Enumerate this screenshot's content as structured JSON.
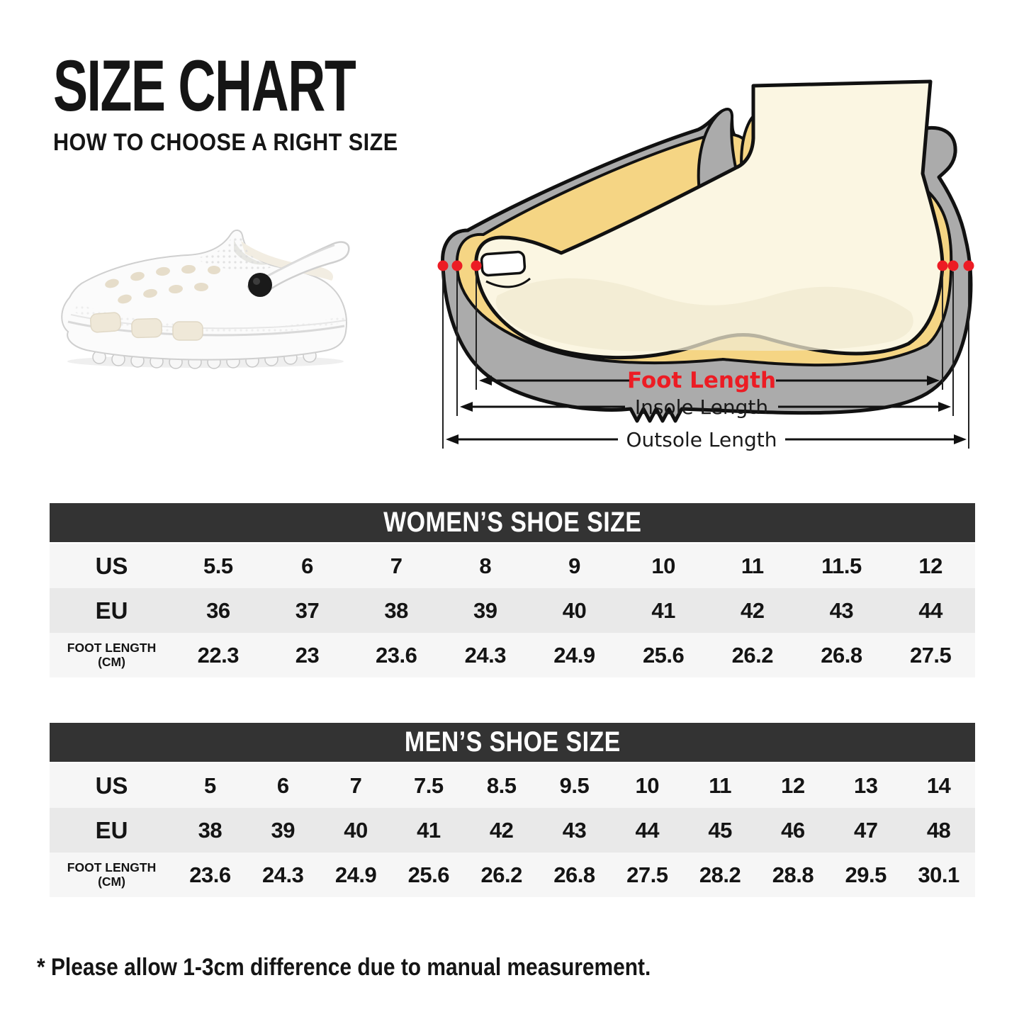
{
  "page": {
    "title": "SIZE CHART",
    "subtitle": "HOW TO CHOOSE A RIGHT SIZE",
    "footnote": "* Please allow 1-3cm difference due to manual measurement."
  },
  "diagram": {
    "foot_length_label": "Foot Length",
    "insole_length_label": "Insole Length",
    "outsole_length_label": "Outsole Length",
    "colors": {
      "accent_red": "#EC1C24",
      "shoe_gray": "#ABABAB",
      "insole_yellow": "#F5D584",
      "foot_cream": "#FBF6E2",
      "outline_black": "#111111",
      "table_header_dark": "#333333",
      "row_light": "#F6F6F6",
      "row_gray": "#E9E9E9"
    }
  },
  "tables": {
    "women": {
      "header": "WOMEN’S SHOE SIZE",
      "rows": [
        {
          "label": "US",
          "values": [
            "5.5",
            "6",
            "7",
            "8",
            "9",
            "10",
            "11",
            "11.5",
            "12"
          ]
        },
        {
          "label": "EU",
          "values": [
            "36",
            "37",
            "38",
            "39",
            "40",
            "41",
            "42",
            "43",
            "44"
          ]
        },
        {
          "label": "FOOT LENGTH (CM)",
          "values": [
            "22.3",
            "23",
            "23.6",
            "24.3",
            "24.9",
            "25.6",
            "26.2",
            "26.8",
            "27.5"
          ]
        }
      ]
    },
    "men": {
      "header": "MEN’S SHOE SIZE",
      "rows": [
        {
          "label": "US",
          "values": [
            "5",
            "6",
            "7",
            "7.5",
            "8.5",
            "9.5",
            "10",
            "11",
            "12",
            "13",
            "14"
          ]
        },
        {
          "label": "EU",
          "values": [
            "38",
            "39",
            "40",
            "41",
            "42",
            "43",
            "44",
            "45",
            "46",
            "47",
            "48"
          ]
        },
        {
          "label": "FOOT LENGTH (CM)",
          "values": [
            "23.6",
            "24.3",
            "24.9",
            "25.6",
            "26.2",
            "26.8",
            "27.5",
            "28.2",
            "28.8",
            "29.5",
            "30.1"
          ]
        }
      ]
    }
  },
  "chart_data": [
    {
      "type": "table",
      "title": "WOMEN’S SHOE SIZE",
      "row_labels": [
        "US",
        "EU",
        "FOOT LENGTH (CM)"
      ],
      "rows": [
        [
          "5.5",
          "6",
          "7",
          "8",
          "9",
          "10",
          "11",
          "11.5",
          "12"
        ],
        [
          "36",
          "37",
          "38",
          "39",
          "40",
          "41",
          "42",
          "43",
          "44"
        ],
        [
          "22.3",
          "23",
          "23.6",
          "24.3",
          "24.9",
          "25.6",
          "26.2",
          "26.8",
          "27.5"
        ]
      ]
    },
    {
      "type": "table",
      "title": "MEN’S SHOE SIZE",
      "row_labels": [
        "US",
        "EU",
        "FOOT LENGTH (CM)"
      ],
      "rows": [
        [
          "5",
          "6",
          "7",
          "7.5",
          "8.5",
          "9.5",
          "10",
          "11",
          "12",
          "13",
          "14"
        ],
        [
          "38",
          "39",
          "40",
          "41",
          "42",
          "43",
          "44",
          "45",
          "46",
          "47",
          "48"
        ],
        [
          "23.6",
          "24.3",
          "24.9",
          "25.6",
          "26.2",
          "26.8",
          "27.5",
          "28.2",
          "28.8",
          "29.5",
          "30.1"
        ]
      ]
    }
  ]
}
